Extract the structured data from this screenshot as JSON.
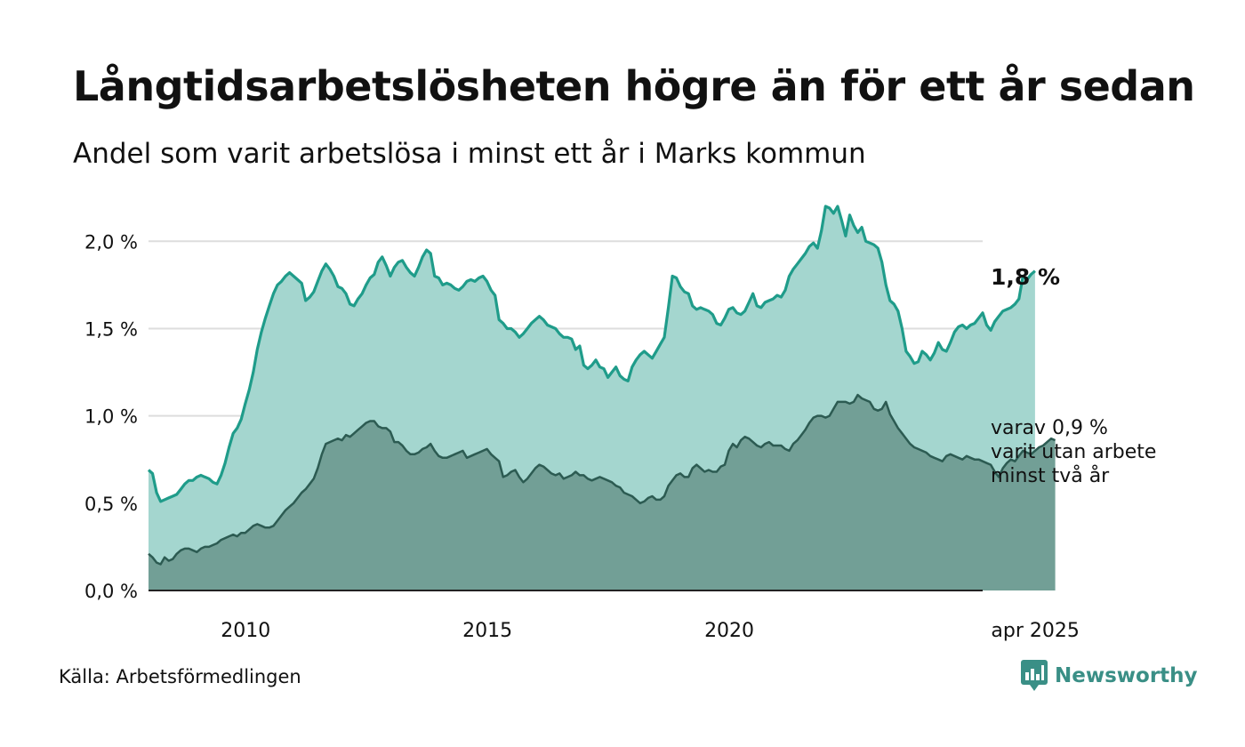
{
  "title": "Långtidsarbetslösheten högre än för ett år sedan",
  "subtitle": "Andel som varit arbetslösa i minst ett år i Marks kommun",
  "source": "Källa: Arbetsförmedlingen",
  "brand": {
    "name": "Newsworthy",
    "icon": "newsworthy-logo-icon"
  },
  "colors": {
    "upper_fill": "#a4d6cf",
    "upper_line": "#1f9c8a",
    "lower_fill": "#729f96",
    "lower_line": "#2c5b52",
    "grid": "#dddddd",
    "brand": "#3a8f86"
  },
  "chart_data": {
    "type": "area",
    "x_start": 2008.0,
    "x_step_months": 1,
    "xlim": [
      2008.0,
      2025.25
    ],
    "ylim": [
      0,
      2.2
    ],
    "y_ticks": [
      0,
      0.5,
      1.0,
      1.5,
      2.0
    ],
    "y_tick_labels": [
      "0,0 %",
      "0,5 %",
      "1,0 %",
      "1,5 %",
      "2,0 %"
    ],
    "x_ticks": [
      2010,
      2015,
      2020,
      2025
    ],
    "x_tick_labels": [
      "2010",
      "2015",
      "2020",
      "apr 2025"
    ],
    "grid": true,
    "annotations": {
      "upper_last": "1,8 %",
      "lower_last": [
        "varav 0,9 %",
        "varit utan arbete",
        "minst två år"
      ]
    },
    "series": [
      {
        "values": [
          0.69,
          0.67,
          0.56,
          0.51,
          0.52,
          0.53,
          0.54,
          0.55,
          0.58,
          0.61,
          0.63,
          0.63,
          0.65,
          0.66,
          0.65,
          0.64,
          0.62,
          0.61,
          0.66,
          0.73,
          0.82,
          0.9,
          0.93,
          0.98,
          1.07,
          1.15,
          1.25,
          1.38,
          1.48,
          1.56,
          1.63,
          1.7,
          1.75,
          1.77,
          1.8,
          1.82,
          1.8,
          1.78,
          1.76,
          1.66,
          1.68,
          1.71,
          1.77,
          1.83,
          1.87,
          1.84,
          1.8,
          1.74,
          1.73,
          1.7,
          1.64,
          1.63,
          1.67,
          1.7,
          1.75,
          1.79,
          1.81,
          1.88,
          1.91,
          1.86,
          1.8,
          1.85,
          1.88,
          1.89,
          1.85,
          1.82,
          1.8,
          1.85,
          1.91,
          1.95,
          1.93,
          1.8,
          1.79,
          1.75,
          1.76,
          1.75,
          1.73,
          1.72,
          1.74,
          1.77,
          1.78,
          1.77,
          1.79,
          1.8,
          1.77,
          1.72,
          1.69,
          1.55,
          1.53,
          1.5,
          1.5,
          1.48,
          1.45,
          1.47,
          1.5,
          1.53,
          1.55,
          1.57,
          1.55,
          1.52,
          1.51,
          1.5,
          1.47,
          1.45,
          1.45,
          1.44,
          1.38,
          1.4,
          1.29,
          1.27,
          1.29,
          1.32,
          1.28,
          1.27,
          1.22,
          1.25,
          1.28,
          1.23,
          1.21,
          1.2,
          1.28,
          1.32,
          1.35,
          1.37,
          1.35,
          1.33,
          1.37,
          1.41,
          1.45,
          1.62,
          1.8,
          1.79,
          1.74,
          1.71,
          1.7,
          1.63,
          1.61,
          1.62,
          1.61,
          1.6,
          1.58,
          1.53,
          1.52,
          1.56,
          1.61,
          1.62,
          1.59,
          1.58,
          1.6,
          1.65,
          1.7,
          1.63,
          1.62,
          1.65,
          1.66,
          1.67,
          1.69,
          1.68,
          1.72,
          1.8,
          1.84,
          1.87,
          1.9,
          1.93,
          1.97,
          1.99,
          1.96,
          2.06,
          2.2,
          2.19,
          2.16,
          2.2,
          2.12,
          2.03,
          2.15,
          2.09,
          2.05,
          2.08,
          2.0,
          1.99,
          1.98,
          1.96,
          1.88,
          1.75,
          1.66,
          1.64,
          1.6,
          1.5,
          1.37,
          1.34,
          1.3,
          1.31,
          1.37,
          1.35,
          1.32,
          1.36,
          1.42,
          1.38,
          1.37,
          1.42,
          1.48,
          1.51,
          1.52,
          1.5,
          1.52,
          1.53,
          1.56,
          1.59,
          1.52,
          1.49,
          1.54,
          1.57,
          1.6,
          1.61,
          1.62,
          1.64,
          1.67,
          1.8,
          1.78,
          1.81,
          1.83
        ]
      },
      {
        "values": [
          0.21,
          0.19,
          0.16,
          0.15,
          0.19,
          0.17,
          0.18,
          0.21,
          0.23,
          0.24,
          0.24,
          0.23,
          0.22,
          0.24,
          0.25,
          0.25,
          0.26,
          0.27,
          0.29,
          0.3,
          0.31,
          0.32,
          0.31,
          0.33,
          0.33,
          0.35,
          0.37,
          0.38,
          0.37,
          0.36,
          0.36,
          0.37,
          0.4,
          0.43,
          0.46,
          0.48,
          0.5,
          0.53,
          0.56,
          0.58,
          0.61,
          0.64,
          0.7,
          0.78,
          0.84,
          0.85,
          0.86,
          0.87,
          0.86,
          0.89,
          0.88,
          0.9,
          0.92,
          0.94,
          0.96,
          0.97,
          0.97,
          0.94,
          0.93,
          0.93,
          0.91,
          0.85,
          0.85,
          0.83,
          0.8,
          0.78,
          0.78,
          0.79,
          0.81,
          0.82,
          0.84,
          0.8,
          0.77,
          0.76,
          0.76,
          0.77,
          0.78,
          0.79,
          0.8,
          0.76,
          0.77,
          0.78,
          0.79,
          0.8,
          0.81,
          0.78,
          0.76,
          0.74,
          0.65,
          0.66,
          0.68,
          0.69,
          0.65,
          0.62,
          0.64,
          0.67,
          0.7,
          0.72,
          0.71,
          0.69,
          0.67,
          0.66,
          0.67,
          0.64,
          0.65,
          0.66,
          0.68,
          0.66,
          0.66,
          0.64,
          0.63,
          0.64,
          0.65,
          0.64,
          0.63,
          0.62,
          0.6,
          0.59,
          0.56,
          0.55,
          0.54,
          0.52,
          0.5,
          0.51,
          0.53,
          0.54,
          0.52,
          0.52,
          0.54,
          0.6,
          0.63,
          0.66,
          0.67,
          0.65,
          0.65,
          0.7,
          0.72,
          0.7,
          0.68,
          0.69,
          0.68,
          0.68,
          0.71,
          0.72,
          0.8,
          0.84,
          0.82,
          0.86,
          0.88,
          0.87,
          0.85,
          0.83,
          0.82,
          0.84,
          0.85,
          0.83,
          0.83,
          0.83,
          0.81,
          0.8,
          0.84,
          0.86,
          0.89,
          0.92,
          0.96,
          0.99,
          1.0,
          1.0,
          0.99,
          1.0,
          1.04,
          1.08,
          1.08,
          1.08,
          1.07,
          1.08,
          1.12,
          1.1,
          1.09,
          1.08,
          1.04,
          1.03,
          1.04,
          1.08,
          1.01,
          0.97,
          0.93,
          0.9,
          0.87,
          0.84,
          0.82,
          0.81,
          0.8,
          0.79,
          0.77,
          0.76,
          0.75,
          0.74,
          0.77,
          0.78,
          0.77,
          0.76,
          0.75,
          0.77,
          0.76,
          0.75,
          0.75,
          0.74,
          0.73,
          0.72,
          0.68,
          0.65,
          0.7,
          0.73,
          0.75,
          0.74,
          0.77,
          0.8,
          0.79,
          0.78,
          0.8,
          0.82,
          0.83,
          0.85,
          0.87,
          0.86
        ]
      }
    ]
  }
}
